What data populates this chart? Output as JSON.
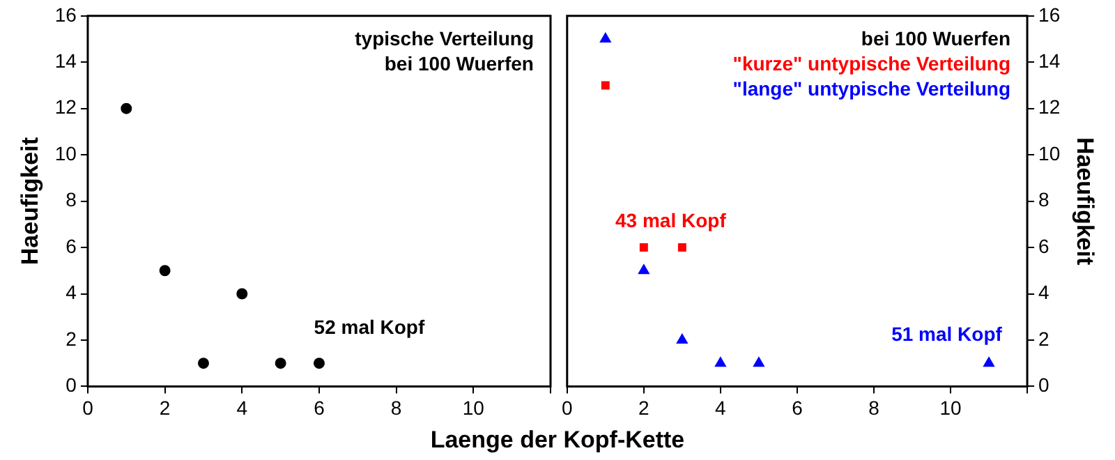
{
  "chart_data": [
    {
      "type": "scatter",
      "ylabel": "Haeufigkeit",
      "xlabel": "Laenge der Kopf-Kette",
      "xlim": [
        0,
        12
      ],
      "ylim": [
        0,
        16
      ],
      "xticks": [
        0,
        2,
        4,
        6,
        8,
        10,
        {
          "value": 12,
          "label": null
        }
      ],
      "yticks": [
        0,
        2,
        4,
        6,
        8,
        10,
        12,
        14,
        16
      ],
      "grid": false,
      "legend": "top right",
      "series": [
        {
          "name": "typische Verteilung\nbei 100 Wuerfen",
          "color": "#000000",
          "marker": "circle",
          "x": [
            1,
            2,
            3,
            4,
            5,
            6
          ],
          "values": [
            12,
            5,
            1,
            4,
            1,
            1
          ]
        }
      ],
      "annotations": [
        "52 mal Kopf"
      ]
    },
    {
      "type": "scatter",
      "ylabel": "Haeufigkeit",
      "xlim": [
        0,
        12
      ],
      "ylim": [
        0,
        16
      ],
      "xticks": [
        0,
        2,
        4,
        6,
        8,
        10,
        {
          "value": 12,
          "label": null
        }
      ],
      "yticks": [
        0,
        2,
        4,
        6,
        8,
        10,
        12,
        14,
        16
      ],
      "grid": false,
      "legend": "top right",
      "legend_title": "bei 100 Wuerfen",
      "series": [
        {
          "name": "\"kurze\" untypische Verteilung",
          "color": "#ff0000",
          "marker": "square",
          "x": [
            1,
            2,
            3
          ],
          "values": [
            13,
            6,
            6
          ]
        },
        {
          "name": "\"lange\" untypische Verteilung",
          "color": "#0000ff",
          "marker": "triangle",
          "x": [
            1,
            2,
            3,
            4,
            5,
            11
          ],
          "values": [
            15,
            5,
            2,
            1,
            1,
            1
          ]
        }
      ],
      "annotations": [
        "43 mal Kopf",
        "51 mal Kopf"
      ]
    }
  ]
}
